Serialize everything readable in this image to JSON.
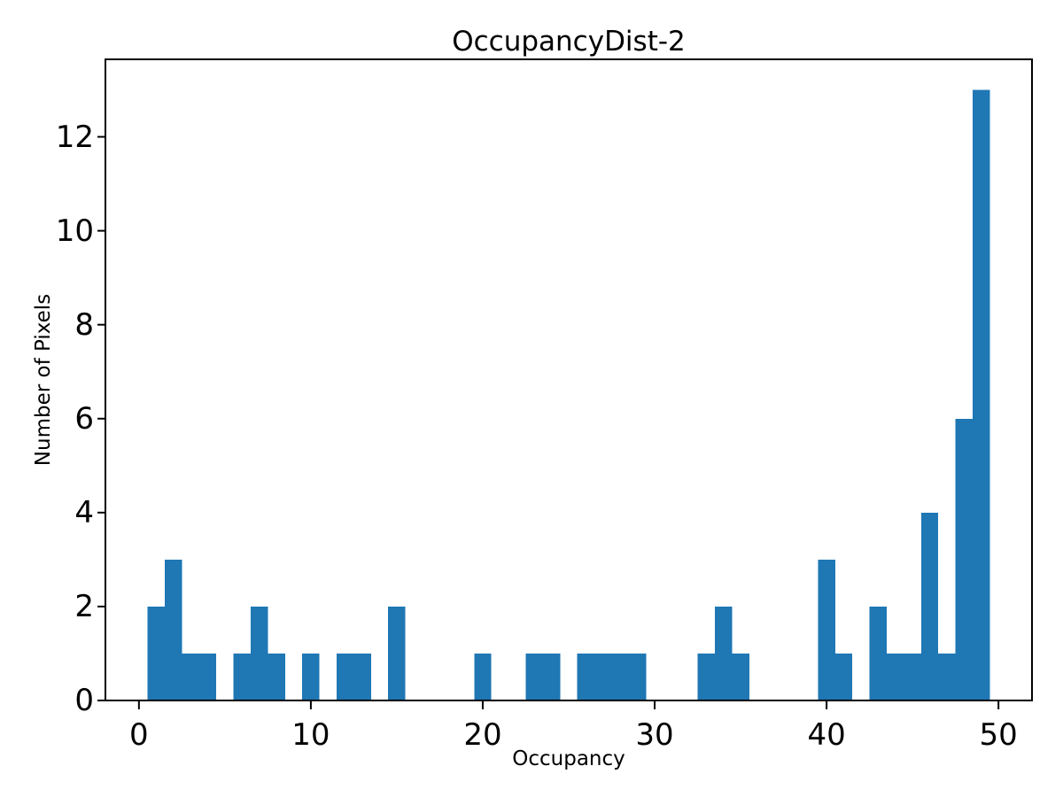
{
  "chart_data": {
    "type": "bar",
    "title": "OccupancyDist-2",
    "xlabel": "Occupancy",
    "ylabel": "Number of Pixels",
    "bar_color": "#1f77b4",
    "axis_color": "#000000",
    "background_color": "#ffffff",
    "grid": false,
    "legend": null,
    "bin_width": 1,
    "bin_centers": [
      1,
      2,
      3,
      4,
      5,
      6,
      7,
      8,
      9,
      10,
      11,
      12,
      13,
      14,
      15,
      16,
      17,
      18,
      19,
      20,
      21,
      22,
      23,
      24,
      25,
      26,
      27,
      28,
      29,
      30,
      31,
      32,
      33,
      34,
      35,
      36,
      37,
      38,
      39,
      40,
      41,
      42,
      43,
      44,
      45,
      46,
      47,
      48,
      49
    ],
    "counts": [
      2,
      3,
      1,
      1,
      0,
      1,
      2,
      1,
      0,
      1,
      0,
      1,
      1,
      0,
      2,
      0,
      0,
      0,
      0,
      1,
      0,
      0,
      1,
      1,
      0,
      1,
      1,
      1,
      1,
      0,
      0,
      0,
      1,
      2,
      1,
      0,
      0,
      0,
      0,
      3,
      1,
      0,
      2,
      1,
      1,
      4,
      1,
      6,
      13
    ],
    "x_ticks": [
      0,
      10,
      20,
      30,
      40,
      50
    ],
    "y_ticks": [
      0,
      2,
      4,
      6,
      8,
      10,
      12
    ],
    "xlim": [
      -1.95,
      51.95
    ],
    "ylim": [
      0,
      13.65
    ]
  }
}
